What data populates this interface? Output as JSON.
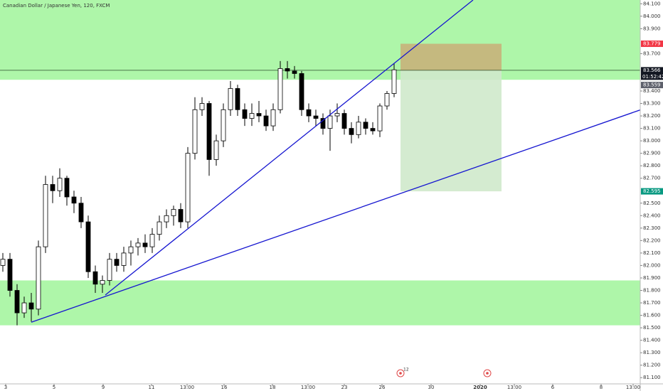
{
  "chart_data": {
    "type": "candlestick",
    "title": "Canadian Dollar / Japanese Yen, 120, FXCM",
    "up_color": "#ffffff",
    "down_color": "#000000",
    "outline_color": "#000000",
    "xlim": [
      -0.4,
      89.6
    ],
    "ylim": [
      81.05,
      84.13
    ],
    "xticks": [
      {
        "value": 0.4,
        "label": "3"
      },
      {
        "value": 7.2,
        "label": "5"
      },
      {
        "value": 14.1,
        "label": "9"
      },
      {
        "value": 20.9,
        "label": "11"
      },
      {
        "value": 25.9,
        "label": "13:00"
      },
      {
        "value": 31.1,
        "label": "16"
      },
      {
        "value": 37.9,
        "label": "18"
      },
      {
        "value": 42.9,
        "label": "13:00"
      },
      {
        "value": 48,
        "label": "23"
      },
      {
        "value": 53.3,
        "label": "26"
      },
      {
        "value": 60.2,
        "label": "30"
      },
      {
        "value": 67.1,
        "label": "2020"
      },
      {
        "value": 71.9,
        "label": "13:00"
      },
      {
        "value": 77.3,
        "label": "6"
      },
      {
        "value": 84.1,
        "label": "8"
      },
      {
        "value": 88.6,
        "label": "13:00"
      }
    ],
    "yticks": [
      {
        "value": 81.1,
        "label": "81.100"
      },
      {
        "value": 81.2,
        "label": "81.200"
      },
      {
        "value": 81.3,
        "label": "81.300"
      },
      {
        "value": 81.4,
        "label": "81.400"
      },
      {
        "value": 81.5,
        "label": "81.500"
      },
      {
        "value": 81.6,
        "label": "81.600"
      },
      {
        "value": 81.7,
        "label": "81.700"
      },
      {
        "value": 81.8,
        "label": "81.800"
      },
      {
        "value": 81.9,
        "label": "81.900"
      },
      {
        "value": 82,
        "label": "82.000"
      },
      {
        "value": 82.1,
        "label": "82.100"
      },
      {
        "value": 82.2,
        "label": "82.200"
      },
      {
        "value": 82.3,
        "label": "82.300"
      },
      {
        "value": 82.4,
        "label": "82.400"
      },
      {
        "value": 82.5,
        "label": "82.500"
      },
      {
        "value": 82.7,
        "label": "82.700"
      },
      {
        "value": 82.8,
        "label": "82.800"
      },
      {
        "value": 82.9,
        "label": "82.900"
      },
      {
        "value": 83,
        "label": "83.000"
      },
      {
        "value": 83.1,
        "label": "83.100"
      },
      {
        "value": 83.2,
        "label": "83.200"
      },
      {
        "value": 83.3,
        "label": "83.300"
      },
      {
        "value": 83.4,
        "label": "83.400"
      },
      {
        "value": 83.7,
        "label": "83.700"
      },
      {
        "value": 83.9,
        "label": "83.900"
      },
      {
        "value": 84,
        "label": "84.000"
      },
      {
        "value": 84.1,
        "label": "84.100"
      }
    ],
    "open": [
      82.0,
      82.05,
      81.8,
      81.62,
      81.7,
      81.65,
      82.15,
      82.65,
      82.6,
      82.7,
      82.55,
      82.5,
      82.35,
      81.95,
      81.85,
      81.88,
      82.05,
      82.0,
      82.1,
      82.15,
      82.18,
      82.15,
      82.25,
      82.35,
      82.4,
      82.45,
      82.35,
      82.9,
      83.25,
      83.3,
      82.85,
      83.0,
      83.25,
      83.42,
      83.25,
      83.18,
      83.22,
      83.2,
      83.12,
      83.25,
      83.58,
      83.56,
      83.54,
      83.25,
      83.2,
      83.18,
      83.1,
      83.2,
      83.22,
      83.1,
      83.05,
      83.15,
      83.1,
      83.08,
      83.28,
      83.38
    ],
    "high": [
      82.1,
      82.1,
      81.85,
      81.75,
      81.78,
      82.2,
      82.72,
      82.72,
      82.78,
      82.72,
      82.6,
      82.55,
      82.4,
      82.0,
      81.92,
      82.1,
      82.1,
      82.15,
      82.2,
      82.22,
      82.25,
      82.3,
      82.4,
      82.45,
      82.48,
      82.5,
      82.95,
      83.35,
      83.35,
      83.32,
      83.05,
      83.3,
      83.48,
      83.45,
      83.3,
      83.3,
      83.32,
      83.25,
      83.3,
      83.64,
      83.64,
      83.6,
      83.56,
      83.3,
      83.25,
      83.22,
      83.25,
      83.3,
      83.25,
      83.15,
      83.2,
      83.18,
      83.15,
      83.3,
      83.4,
      83.62
    ],
    "low": [
      81.95,
      81.75,
      81.52,
      81.58,
      81.55,
      81.6,
      82.1,
      82.5,
      82.55,
      82.48,
      82.42,
      82.3,
      81.9,
      81.78,
      81.78,
      81.84,
      81.95,
      81.95,
      82.0,
      82.08,
      82.1,
      82.1,
      82.2,
      82.3,
      82.32,
      82.3,
      82.3,
      82.85,
      83.2,
      82.72,
      82.8,
      82.95,
      83.2,
      83.2,
      83.12,
      83.12,
      83.15,
      83.08,
      83.08,
      83.22,
      83.5,
      83.5,
      83.2,
      83.15,
      83.12,
      83.05,
      82.92,
      83.15,
      83.05,
      82.98,
      83.02,
      83.05,
      83.05,
      83.03,
      83.25,
      83.35
    ],
    "close": [
      82.05,
      81.8,
      81.62,
      81.7,
      81.65,
      82.15,
      82.65,
      82.6,
      82.7,
      82.55,
      82.5,
      82.35,
      81.95,
      81.85,
      81.88,
      82.05,
      82.0,
      82.1,
      82.15,
      82.18,
      82.15,
      82.25,
      82.35,
      82.4,
      82.45,
      82.35,
      82.9,
      83.25,
      83.3,
      82.85,
      83.0,
      83.25,
      83.42,
      83.25,
      83.18,
      83.22,
      83.2,
      83.12,
      83.25,
      83.58,
      83.56,
      83.54,
      83.25,
      83.2,
      83.18,
      83.1,
      83.2,
      83.22,
      83.1,
      83.05,
      83.15,
      83.1,
      83.08,
      83.28,
      83.38,
      83.57
    ],
    "zones": [
      {
        "from": 83.49,
        "to": 84.13,
        "color": "#a5f5a0"
      },
      {
        "from": 81.52,
        "to": 81.88,
        "color": "#a5f5a0"
      }
    ],
    "last_price_line": 83.566,
    "position": {
      "x": [
        55.9,
        70.1
      ],
      "entry": 83.566,
      "stop": 83.779,
      "target": 82.595,
      "stop_color": "#c8b27a",
      "target_color": "#cfe9cb"
    },
    "trend_lines": [
      {
        "x": [
          4,
          89.6
        ],
        "y": [
          81.545,
          83.248
        ],
        "color": "#1515d0"
      },
      {
        "x": [
          14.4,
          66.1
        ],
        "y": [
          81.763,
          84.13
        ],
        "color": "#1515d0"
      }
    ],
    "price_labels": [
      {
        "value": 83.779,
        "color": "#f23645"
      },
      {
        "value": 83.566,
        "color": "#131722"
      },
      {
        "value": 83.559,
        "color": "#5d606b"
      },
      {
        "value": 82.595,
        "color": "#089981"
      }
    ],
    "countdown": "01:52:42",
    "events": [
      {
        "x": 55.9,
        "label": "12"
      },
      {
        "x": 68.1
      }
    ]
  }
}
